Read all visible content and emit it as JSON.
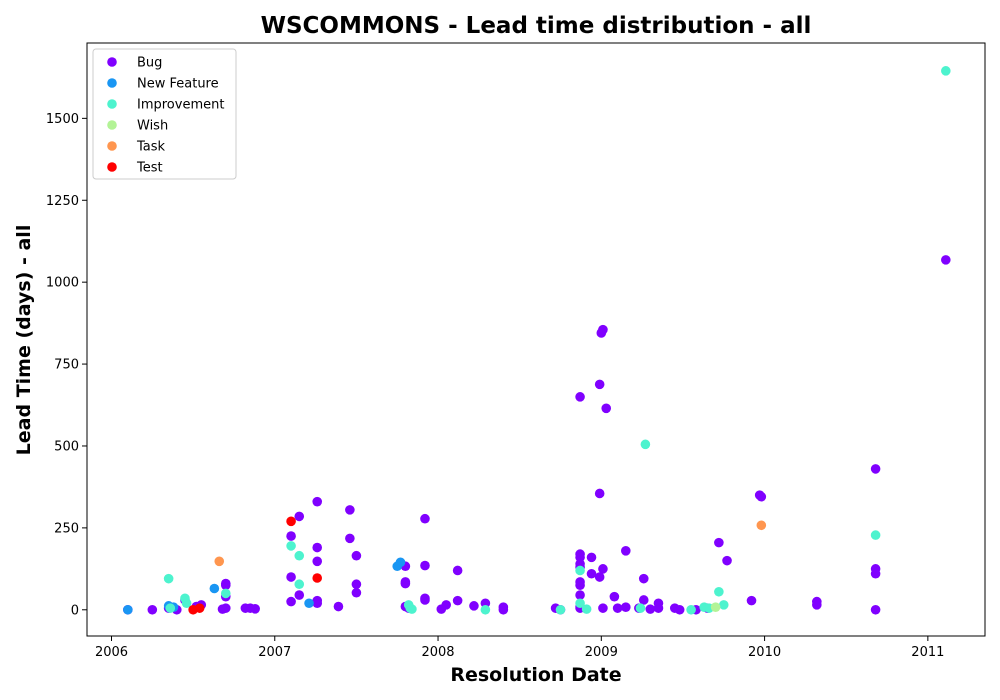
{
  "chart_data": {
    "type": "scatter",
    "title": "WSCOMMONS - Lead time distribution - all",
    "xlabel": "Resolution Date",
    "ylabel": "Lead Time (days) - all",
    "xlim": [
      2005.85,
      2011.35
    ],
    "ylim": [
      -80,
      1730
    ],
    "x_ticks": [
      2006,
      2007,
      2008,
      2009,
      2010,
      2011
    ],
    "y_ticks": [
      0,
      250,
      500,
      750,
      1000,
      1250,
      1500
    ],
    "grid": false,
    "legend_position": "top-left",
    "series": [
      {
        "name": "Bug",
        "color": "#8000ff",
        "points": [
          [
            2006.1,
            0
          ],
          [
            2006.25,
            0
          ],
          [
            2006.35,
            5
          ],
          [
            2006.4,
            0
          ],
          [
            2006.45,
            30
          ],
          [
            2006.52,
            10
          ],
          [
            2006.55,
            15
          ],
          [
            2006.7,
            80
          ],
          [
            2006.7,
            75
          ],
          [
            2006.7,
            40
          ],
          [
            2006.7,
            5
          ],
          [
            2006.68,
            2
          ],
          [
            2006.82,
            5
          ],
          [
            2006.85,
            5
          ],
          [
            2006.88,
            3
          ],
          [
            2007.1,
            100
          ],
          [
            2007.1,
            25
          ],
          [
            2007.1,
            225
          ],
          [
            2007.15,
            285
          ],
          [
            2007.15,
            45
          ],
          [
            2007.26,
            330
          ],
          [
            2007.26,
            190
          ],
          [
            2007.26,
            148
          ],
          [
            2007.26,
            28
          ],
          [
            2007.26,
            20
          ],
          [
            2007.39,
            10
          ],
          [
            2007.46,
            305
          ],
          [
            2007.46,
            218
          ],
          [
            2007.5,
            165
          ],
          [
            2007.5,
            78
          ],
          [
            2007.5,
            52
          ],
          [
            2007.8,
            133
          ],
          [
            2007.8,
            85
          ],
          [
            2007.8,
            80
          ],
          [
            2007.8,
            10
          ],
          [
            2007.82,
            5
          ],
          [
            2007.92,
            278
          ],
          [
            2007.92,
            135
          ],
          [
            2007.92,
            35
          ],
          [
            2007.92,
            30
          ],
          [
            2008.02,
            2
          ],
          [
            2008.05,
            15
          ],
          [
            2008.12,
            120
          ],
          [
            2008.12,
            28
          ],
          [
            2008.22,
            12
          ],
          [
            2008.29,
            20
          ],
          [
            2008.4,
            8
          ],
          [
            2008.4,
            0
          ],
          [
            2008.72,
            5
          ],
          [
            2008.75,
            0
          ],
          [
            2008.87,
            650
          ],
          [
            2008.87,
            170
          ],
          [
            2008.87,
            160
          ],
          [
            2008.87,
            140
          ],
          [
            2008.87,
            130
          ],
          [
            2008.87,
            85
          ],
          [
            2008.87,
            75
          ],
          [
            2008.87,
            45
          ],
          [
            2008.87,
            10
          ],
          [
            2008.87,
            5
          ],
          [
            2008.94,
            160
          ],
          [
            2008.94,
            110
          ],
          [
            2008.99,
            355
          ],
          [
            2008.99,
            688
          ],
          [
            2008.99,
            100
          ],
          [
            2009.0,
            845
          ],
          [
            2009.01,
            855
          ],
          [
            2009.01,
            125
          ],
          [
            2009.01,
            5
          ],
          [
            2009.03,
            615
          ],
          [
            2009.08,
            40
          ],
          [
            2009.1,
            5
          ],
          [
            2009.15,
            180
          ],
          [
            2009.15,
            8
          ],
          [
            2009.23,
            5
          ],
          [
            2009.26,
            95
          ],
          [
            2009.26,
            30
          ],
          [
            2009.3,
            2
          ],
          [
            2009.35,
            20
          ],
          [
            2009.35,
            5
          ],
          [
            2009.45,
            5
          ],
          [
            2009.48,
            0
          ],
          [
            2009.58,
            0
          ],
          [
            2009.65,
            5
          ],
          [
            2009.72,
            205
          ],
          [
            2009.77,
            150
          ],
          [
            2009.92,
            28
          ],
          [
            2009.97,
            350
          ],
          [
            2009.98,
            345
          ],
          [
            2010.32,
            25
          ],
          [
            2010.32,
            15
          ],
          [
            2010.68,
            430
          ],
          [
            2010.68,
            125
          ],
          [
            2010.68,
            110
          ],
          [
            2010.68,
            0
          ],
          [
            2011.11,
            1068
          ]
        ]
      },
      {
        "name": "New Feature",
        "color": "#1996f3",
        "points": [
          [
            2006.1,
            0
          ],
          [
            2006.35,
            12
          ],
          [
            2006.38,
            8
          ],
          [
            2006.63,
            65
          ],
          [
            2007.21,
            20
          ],
          [
            2007.75,
            133
          ],
          [
            2007.77,
            145
          ]
        ]
      },
      {
        "name": "Improvement",
        "color": "#4df3ce",
        "points": [
          [
            2006.35,
            95
          ],
          [
            2006.36,
            5
          ],
          [
            2006.45,
            35
          ],
          [
            2006.46,
            20
          ],
          [
            2006.7,
            50
          ],
          [
            2007.1,
            195
          ],
          [
            2007.15,
            165
          ],
          [
            2007.15,
            78
          ],
          [
            2007.82,
            15
          ],
          [
            2007.83,
            5
          ],
          [
            2007.84,
            2
          ],
          [
            2008.29,
            0
          ],
          [
            2008.75,
            0
          ],
          [
            2008.87,
            120
          ],
          [
            2008.87,
            20
          ],
          [
            2008.91,
            2
          ],
          [
            2009.24,
            5
          ],
          [
            2009.27,
            505
          ],
          [
            2009.55,
            0
          ],
          [
            2009.63,
            8
          ],
          [
            2009.66,
            5
          ],
          [
            2009.72,
            55
          ],
          [
            2009.75,
            15
          ],
          [
            2010.68,
            228
          ],
          [
            2011.11,
            1645
          ]
        ]
      },
      {
        "name": "Wish",
        "color": "#b3f396",
        "points": [
          [
            2009.7,
            8
          ]
        ]
      },
      {
        "name": "Task",
        "color": "#ff964f",
        "points": [
          [
            2006.66,
            148
          ],
          [
            2009.98,
            258
          ]
        ]
      },
      {
        "name": "Test",
        "color": "#ff0000",
        "points": [
          [
            2006.5,
            0
          ],
          [
            2006.54,
            5
          ],
          [
            2007.1,
            270
          ],
          [
            2007.26,
            97
          ]
        ]
      }
    ]
  }
}
